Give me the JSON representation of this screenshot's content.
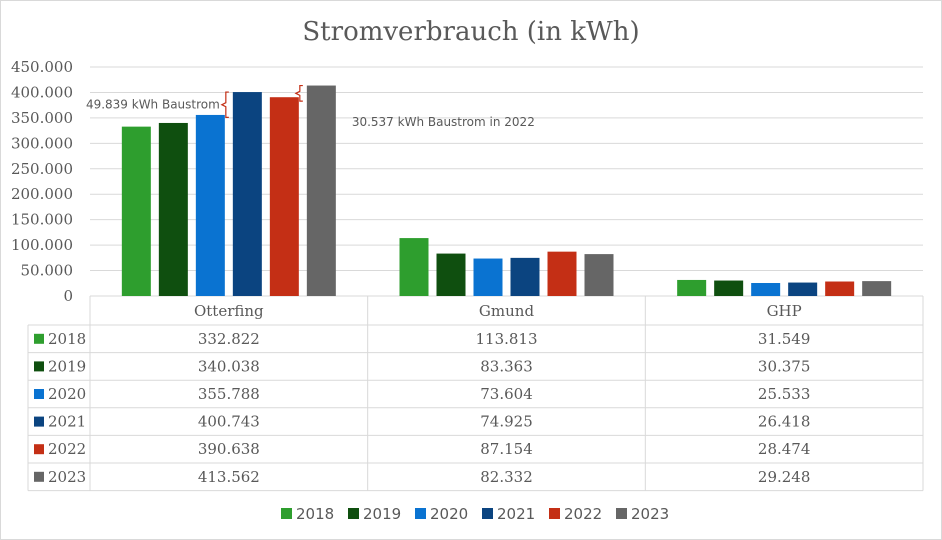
{
  "chart_data": {
    "type": "bar",
    "title": "Stromverbrauch (in kWh)",
    "categories": [
      "Otterfing",
      "Gmund",
      "GHP"
    ],
    "series": [
      {
        "name": "2018",
        "color": "#2e9e2e",
        "values": [
          332822,
          113813,
          31549
        ],
        "labels": [
          "332.822",
          "113.813",
          "31.549"
        ]
      },
      {
        "name": "2019",
        "color": "#0f4f0f",
        "values": [
          340038,
          83363,
          30375
        ],
        "labels": [
          "340.038",
          "83.363",
          "30.375"
        ]
      },
      {
        "name": "2020",
        "color": "#0a73d1",
        "values": [
          355788,
          73604,
          25533
        ],
        "labels": [
          "355.788",
          "73.604",
          "25.533"
        ]
      },
      {
        "name": "2021",
        "color": "#0b4480",
        "values": [
          400743,
          74925,
          26418
        ],
        "labels": [
          "400.743",
          "74.925",
          "26.418"
        ]
      },
      {
        "name": "2022",
        "color": "#c42f15",
        "values": [
          390638,
          87154,
          28474
        ],
        "labels": [
          "390.638",
          "87.154",
          "28.474"
        ]
      },
      {
        "name": "2023",
        "color": "#666666",
        "values": [
          413562,
          82332,
          29248
        ],
        "labels": [
          "413.562",
          "82.332",
          "29.248"
        ]
      }
    ],
    "ylim": [
      0,
      450000
    ],
    "yticks": [
      {
        "value": 0,
        "label": "0"
      },
      {
        "value": 50000,
        "label": "50.000"
      },
      {
        "value": 100000,
        "label": "100.000"
      },
      {
        "value": 150000,
        "label": "150.000"
      },
      {
        "value": 200000,
        "label": "200.000"
      },
      {
        "value": 250000,
        "label": "250.000"
      },
      {
        "value": 300000,
        "label": "300.000"
      },
      {
        "value": 350000,
        "label": "350.000"
      },
      {
        "value": 400000,
        "label": "400.000"
      },
      {
        "value": 450000,
        "label": "450.000"
      }
    ],
    "grid": true,
    "data_table": true,
    "legend_position": "bottom",
    "annotations": [
      {
        "text": "49.839 kWh Baustrom",
        "category": "Otterfing",
        "series": "2021",
        "from": 351000,
        "to": 400743
      },
      {
        "text": "30.537 kWh Baustrom in 2022",
        "category": "Otterfing",
        "series": "2023",
        "from": 383000,
        "to": 413562
      }
    ]
  }
}
